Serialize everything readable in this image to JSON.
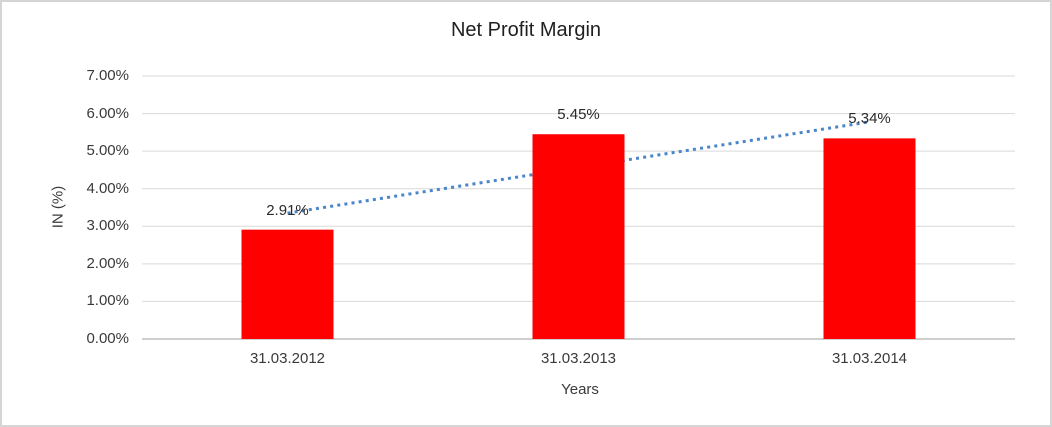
{
  "chart_data": {
    "type": "bar",
    "title": "Net Profit Margin",
    "xlabel": "Years",
    "ylabel": "IN (%)",
    "categories": [
      "31.03.2012",
      "31.03.2013",
      "31.03.2014"
    ],
    "values": [
      2.91,
      5.45,
      5.34
    ],
    "data_labels": [
      "2.91%",
      "5.45%",
      "5.34%"
    ],
    "ylim": [
      0,
      7
    ],
    "ytick_labels": [
      "0.00%",
      "1.00%",
      "2.00%",
      "3.00%",
      "4.00%",
      "5.00%",
      "6.00%",
      "7.00%"
    ],
    "grid": true,
    "legend": "none",
    "trendline": {
      "type": "linear",
      "style": "dotted",
      "start_value": 3.35,
      "end_value": 5.78
    },
    "colors": {
      "bar": "#FF0000",
      "trendline": "#4A86C8",
      "gridline": "#D9D9D9",
      "axis_line": "#BFBFBF",
      "frame_border": "#D5D5D5",
      "text": "#3A3A3A",
      "title_text": "#1F1F1F"
    }
  }
}
